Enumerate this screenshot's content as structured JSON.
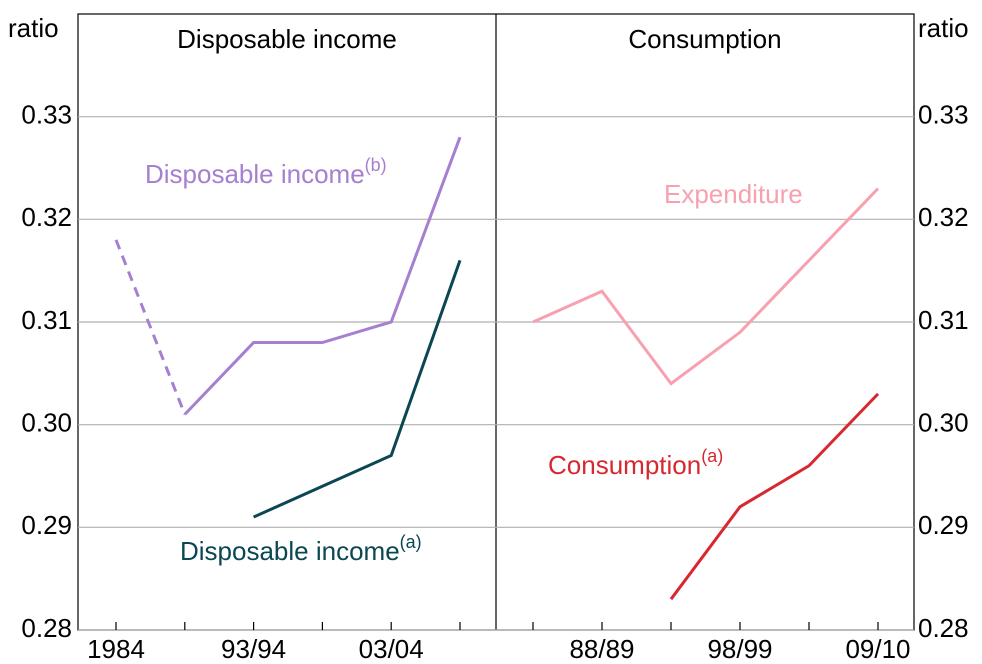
{
  "chart_data": [
    {
      "type": "line",
      "title": "Disposable income",
      "y_label": "ratio",
      "categories": [
        "1984",
        null,
        "93/94",
        null,
        "03/04",
        null
      ],
      "ylim": [
        0.28,
        0.34
      ],
      "yticks": [
        0.28,
        0.29,
        {
          "value": 0.3,
          "label": "0.30"
        },
        0.31,
        0.32,
        0.33
      ],
      "grid": true,
      "series": [
        {
          "name": "Disposable income",
          "note": "(b)",
          "color": "#a57fd0",
          "dashed_to_index": 1,
          "values": [
            0.318,
            0.301,
            0.308,
            0.308,
            0.31,
            0.328
          ]
        },
        {
          "name": "Disposable income",
          "note": "(a)",
          "color": "#0b4752",
          "values": [
            null,
            null,
            0.291,
            0.294,
            0.297,
            0.316
          ]
        }
      ]
    },
    {
      "type": "line",
      "title": "Consumption",
      "y_label": "ratio",
      "categories": [
        null,
        "88/89",
        null,
        "98/99",
        null,
        "09/10"
      ],
      "ylim": [
        0.28,
        0.34
      ],
      "yticks": [
        0.28,
        0.29,
        {
          "value": 0.3,
          "label": "0.30"
        },
        0.31,
        0.32,
        0.33
      ],
      "grid": true,
      "series": [
        {
          "name": "Expenditure",
          "color": "#f7a1b0",
          "values": [
            0.31,
            0.313,
            0.304,
            0.309,
            0.316,
            0.323
          ]
        },
        {
          "name": "Consumption",
          "note": "(a)",
          "color": "#d7282f",
          "values": [
            null,
            null,
            0.283,
            0.292,
            0.296,
            0.303
          ]
        }
      ]
    }
  ]
}
